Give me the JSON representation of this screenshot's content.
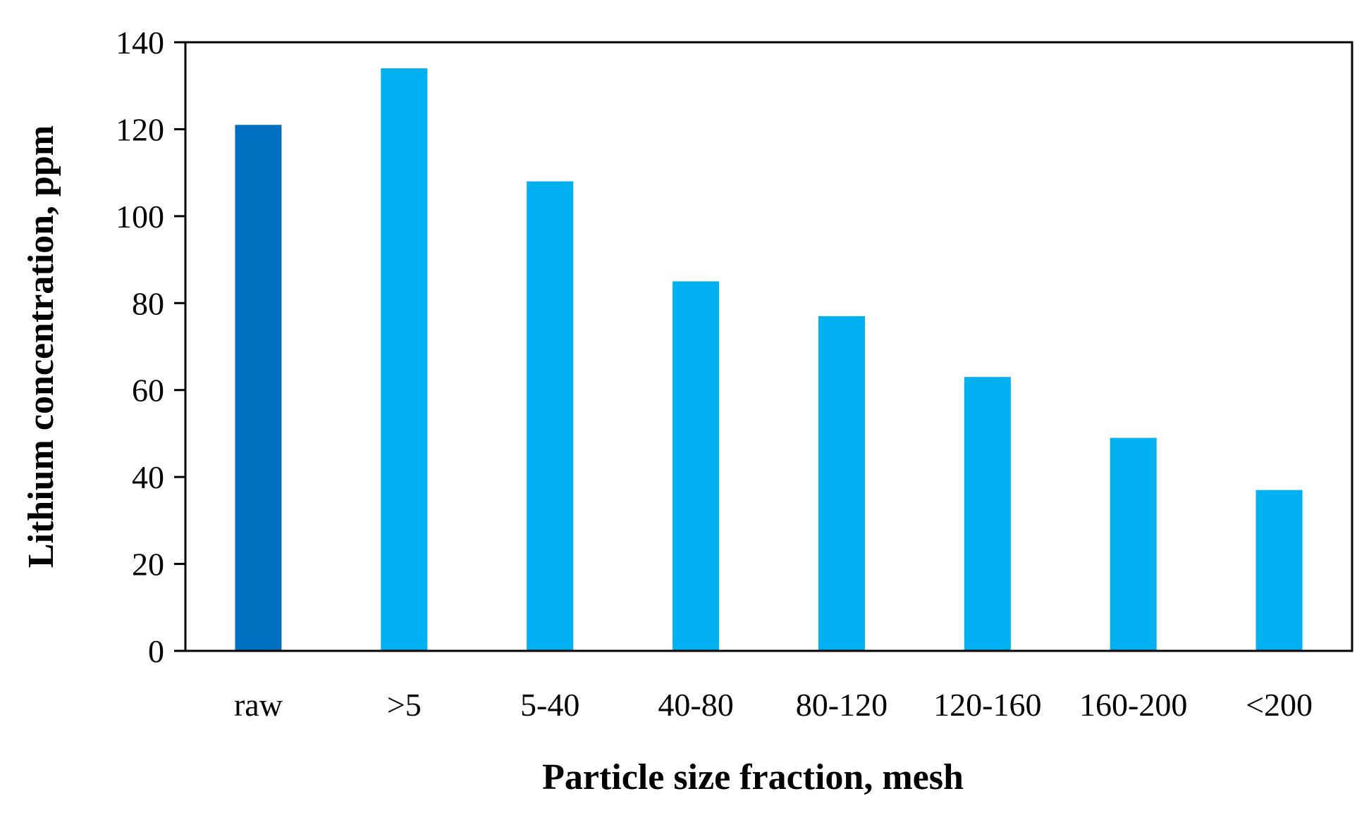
{
  "chart_data": {
    "type": "bar",
    "categories": [
      "raw",
      ">5",
      "5-40",
      "40-80",
      "80-120",
      "120-160",
      "160-200",
      "<200"
    ],
    "values": [
      121,
      134,
      108,
      85,
      77,
      63,
      49,
      37
    ],
    "title": "",
    "xlabel": "Particle size fraction, mesh",
    "ylabel": "Lithium concentration, ppm",
    "ylim": [
      0,
      140
    ],
    "yticks": [
      0,
      20,
      40,
      60,
      80,
      100,
      120,
      140
    ],
    "grid": false,
    "legend": "none",
    "colors": {
      "highlight": "#0070c0",
      "default": "#00b0f0",
      "axis": "#000000"
    },
    "highlight_index": 0
  }
}
